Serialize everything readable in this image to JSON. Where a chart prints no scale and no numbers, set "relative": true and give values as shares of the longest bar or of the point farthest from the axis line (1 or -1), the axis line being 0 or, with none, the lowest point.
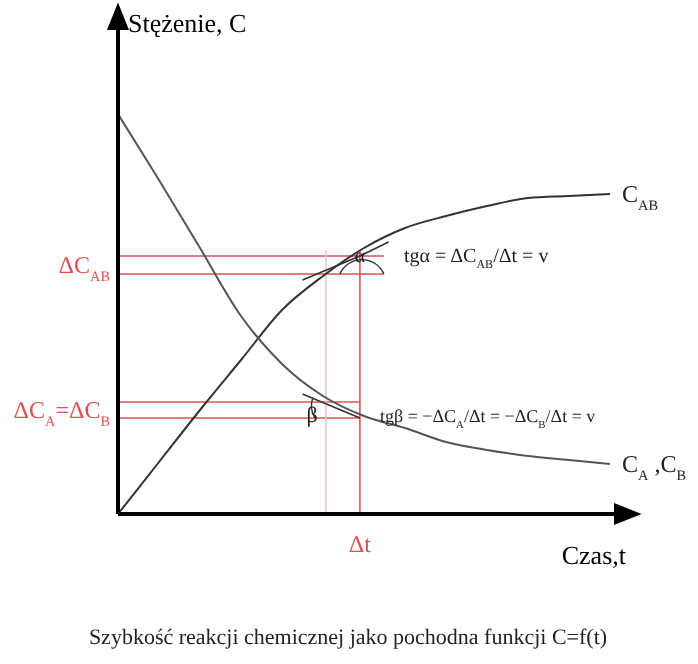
{
  "chart_data": {
    "type": "line",
    "relative": true,
    "xlabel": "Czas,t",
    "ylabel": "Stężenie, C",
    "categories": [
      null,
      null,
      null,
      null,
      null,
      null,
      null,
      null,
      null,
      null,
      null,
      null,
      null
    ],
    "series": [
      {
        "name": "C$_{AB}$",
        "color": "#333333",
        "values": [
          0,
          0.13,
          0.26,
          0.385,
          0.51,
          0.595,
          0.665,
          0.715,
          0.745,
          0.77,
          0.79,
          0.795,
          0.8
        ]
      },
      {
        "name": "C$_{A}$ ,C$_{B}$",
        "color": "#555555",
        "values": [
          1,
          0.835,
          0.665,
          0.495,
          0.375,
          0.295,
          0.245,
          0.215,
          0.18,
          0.16,
          0.145,
          0.135,
          0.125
        ]
      }
    ],
    "ref_lines": [
      {
        "axis": "y",
        "value": 0.645,
        "label": "ΔC$_{AB}$",
        "color": "#e05050"
      },
      {
        "axis": "y",
        "value": 0.6,
        "label": null,
        "color": "#e05050"
      },
      {
        "axis": "y",
        "value": 0.28,
        "label": "ΔC$_{A}$=ΔC$_{B}$",
        "color": "#e05050"
      },
      {
        "axis": "y",
        "value": 0.24,
        "label": null,
        "color": "#e05050"
      }
    ],
    "annotations": [
      "tgα = ΔC$_{AB}$/Δt = v",
      "tgβ = −ΔC$_{A}$/Δt = −ΔC$_{B}$/Δt = v",
      "α",
      "β",
      "Szybkość reakcji chemicznej jako pochodna funkcji C=f(t)",
      "Δt"
    ],
    "marker": "none",
    "line_style": "solid"
  }
}
